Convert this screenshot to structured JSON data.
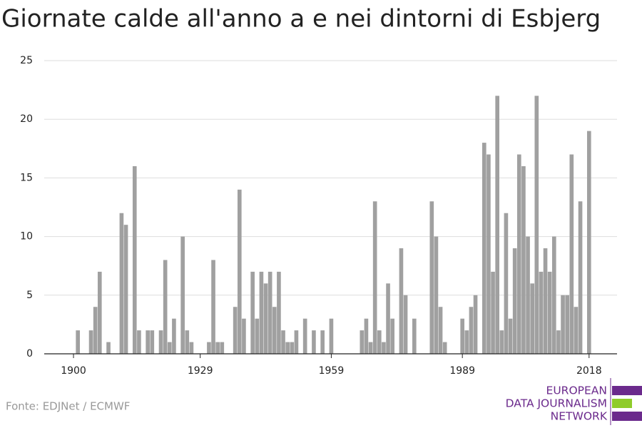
{
  "chart_data": {
    "type": "bar",
    "title": "Giornate calde all'anno a e nei dintorni di Esbjerg",
    "source": "Fonte: EDJNet / ECMWF",
    "logo": [
      "EUROPEAN",
      "DATA JOURNALISM",
      "NETWORK"
    ],
    "color": "#a0a0a0",
    "grid": true,
    "x": [
      1900,
      1901,
      1902,
      1903,
      1904,
      1905,
      1906,
      1907,
      1908,
      1909,
      1910,
      1911,
      1912,
      1913,
      1914,
      1915,
      1916,
      1917,
      1918,
      1919,
      1920,
      1921,
      1922,
      1923,
      1924,
      1925,
      1926,
      1927,
      1928,
      1929,
      1930,
      1931,
      1932,
      1933,
      1934,
      1935,
      1936,
      1937,
      1938,
      1939,
      1940,
      1941,
      1942,
      1943,
      1944,
      1945,
      1946,
      1947,
      1948,
      1949,
      1950,
      1951,
      1952,
      1953,
      1954,
      1955,
      1956,
      1957,
      1958,
      1959,
      1960,
      1961,
      1962,
      1963,
      1964,
      1965,
      1966,
      1967,
      1968,
      1969,
      1970,
      1971,
      1972,
      1973,
      1974,
      1975,
      1976,
      1977,
      1978,
      1979,
      1980,
      1981,
      1982,
      1983,
      1984,
      1985,
      1986,
      1987,
      1988,
      1989,
      1990,
      1991,
      1992,
      1993,
      1994,
      1995,
      1996,
      1997,
      1998,
      1999,
      2000,
      2001,
      2002,
      2003,
      2004,
      2005,
      2006,
      2007,
      2008,
      2009,
      2010,
      2011,
      2012,
      2013,
      2014,
      2015,
      2016,
      2017,
      2018
    ],
    "values": [
      0,
      2,
      0,
      0,
      2,
      4,
      7,
      0,
      1,
      0,
      0,
      12,
      11,
      0,
      16,
      2,
      0,
      2,
      2,
      0,
      2,
      8,
      1,
      3,
      0,
      10,
      2,
      1,
      0,
      0,
      0,
      1,
      8,
      1,
      1,
      0,
      0,
      4,
      14,
      3,
      0,
      7,
      3,
      7,
      6,
      7,
      4,
      7,
      2,
      1,
      1,
      2,
      0,
      3,
      0,
      2,
      0,
      2,
      0,
      3,
      0,
      0,
      0,
      0,
      0,
      0,
      2,
      3,
      1,
      13,
      2,
      1,
      6,
      3,
      0,
      9,
      5,
      0,
      3,
      0,
      0,
      0,
      13,
      10,
      4,
      1,
      0,
      0,
      0,
      3,
      2,
      4,
      5,
      0,
      18,
      17,
      7,
      22,
      2,
      12,
      3,
      9,
      17,
      16,
      10,
      6,
      22,
      7,
      9,
      7,
      10,
      2,
      5,
      5,
      17,
      4,
      13,
      0,
      19
    ],
    "xlim": [
      1893.3,
      2024.4
    ],
    "xticks": [
      1900,
      1929,
      1959,
      1989,
      2018
    ],
    "ylim": [
      0,
      25
    ],
    "yticks": [
      0,
      5,
      10,
      15,
      20,
      25
    ]
  }
}
